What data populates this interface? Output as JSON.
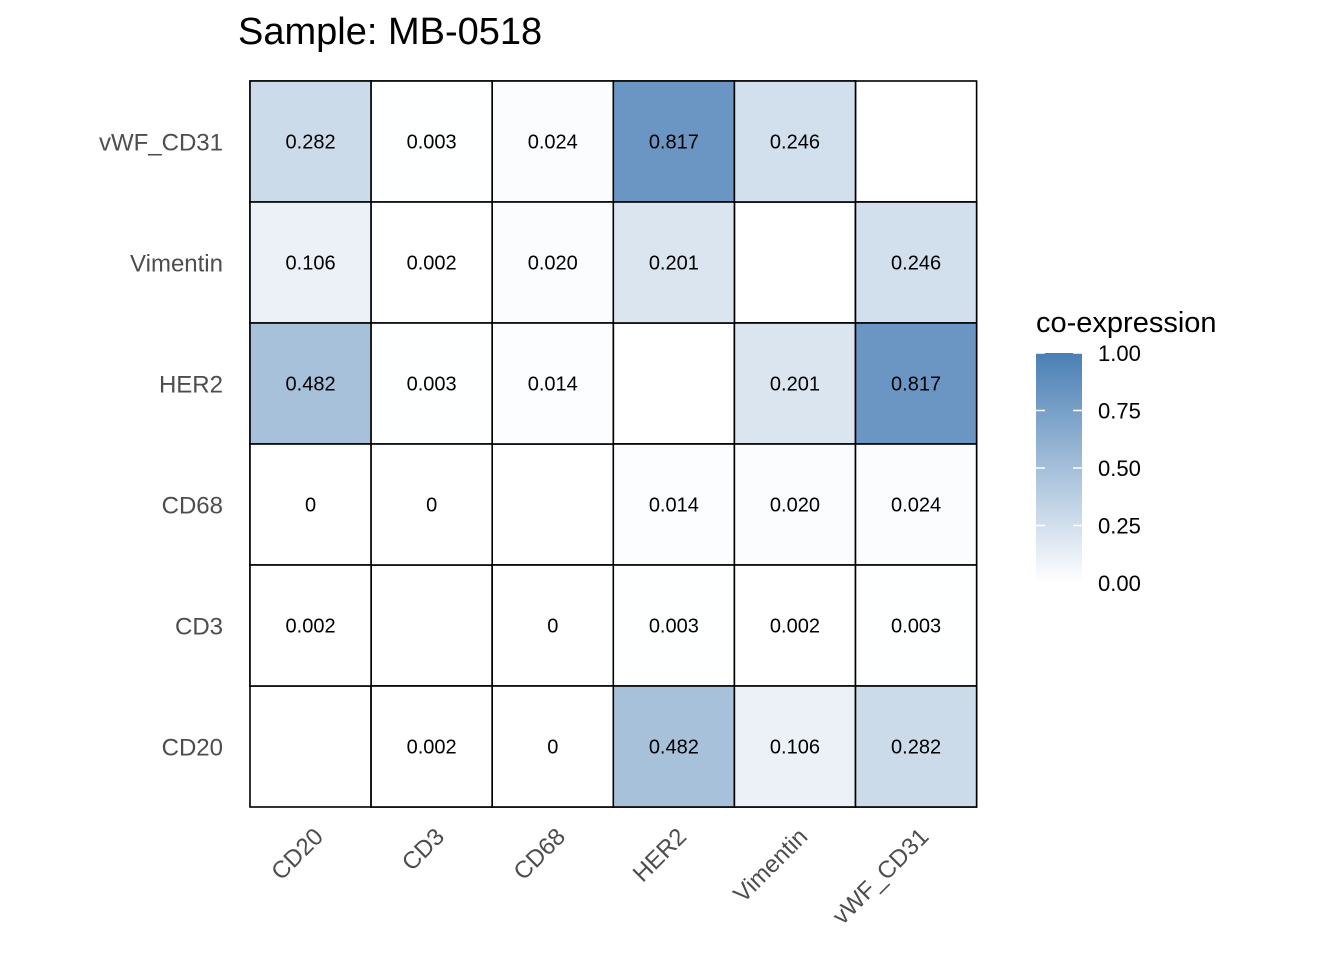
{
  "chart_data": {
    "type": "heatmap",
    "title": "Sample: MB-0518",
    "x_categories": [
      "CD20",
      "CD3",
      "CD68",
      "HER2",
      "Vimentin",
      "vWF_CD31"
    ],
    "y_categories": [
      "CD20",
      "CD3",
      "CD68",
      "HER2",
      "Vimentin",
      "vWF_CD31"
    ],
    "cells": [
      {
        "x": "CD20",
        "y": "vWF_CD31",
        "value": 0.282,
        "label": "0.282"
      },
      {
        "x": "CD3",
        "y": "vWF_CD31",
        "value": 0.003,
        "label": "0.003"
      },
      {
        "x": "CD68",
        "y": "vWF_CD31",
        "value": 0.024,
        "label": "0.024"
      },
      {
        "x": "HER2",
        "y": "vWF_CD31",
        "value": 0.817,
        "label": "0.817"
      },
      {
        "x": "Vimentin",
        "y": "vWF_CD31",
        "value": 0.246,
        "label": "0.246"
      },
      {
        "x": "CD20",
        "y": "Vimentin",
        "value": 0.106,
        "label": "0.106"
      },
      {
        "x": "CD3",
        "y": "Vimentin",
        "value": 0.002,
        "label": "0.002"
      },
      {
        "x": "CD68",
        "y": "Vimentin",
        "value": 0.02,
        "label": "0.020"
      },
      {
        "x": "HER2",
        "y": "Vimentin",
        "value": 0.201,
        "label": "0.201"
      },
      {
        "x": "vWF_CD31",
        "y": "Vimentin",
        "value": 0.246,
        "label": "0.246"
      },
      {
        "x": "CD20",
        "y": "HER2",
        "value": 0.482,
        "label": "0.482"
      },
      {
        "x": "CD3",
        "y": "HER2",
        "value": 0.003,
        "label": "0.003"
      },
      {
        "x": "CD68",
        "y": "HER2",
        "value": 0.014,
        "label": "0.014"
      },
      {
        "x": "Vimentin",
        "y": "HER2",
        "value": 0.201,
        "label": "0.201"
      },
      {
        "x": "vWF_CD31",
        "y": "HER2",
        "value": 0.817,
        "label": "0.817"
      },
      {
        "x": "CD20",
        "y": "CD68",
        "value": 0,
        "label": "0"
      },
      {
        "x": "CD3",
        "y": "CD68",
        "value": 0,
        "label": "0"
      },
      {
        "x": "HER2",
        "y": "CD68",
        "value": 0.014,
        "label": "0.014"
      },
      {
        "x": "Vimentin",
        "y": "CD68",
        "value": 0.02,
        "label": "0.020"
      },
      {
        "x": "vWF_CD31",
        "y": "CD68",
        "value": 0.024,
        "label": "0.024"
      },
      {
        "x": "CD20",
        "y": "CD3",
        "value": 0.002,
        "label": "0.002"
      },
      {
        "x": "CD68",
        "y": "CD3",
        "value": 0,
        "label": "0"
      },
      {
        "x": "HER2",
        "y": "CD3",
        "value": 0.003,
        "label": "0.003"
      },
      {
        "x": "Vimentin",
        "y": "CD3",
        "value": 0.002,
        "label": "0.002"
      },
      {
        "x": "vWF_CD31",
        "y": "CD3",
        "value": 0.003,
        "label": "0.003"
      },
      {
        "x": "CD3",
        "y": "CD20",
        "value": 0.002,
        "label": "0.002"
      },
      {
        "x": "CD68",
        "y": "CD20",
        "value": 0,
        "label": "0"
      },
      {
        "x": "HER2",
        "y": "CD20",
        "value": 0.482,
        "label": "0.482"
      },
      {
        "x": "Vimentin",
        "y": "CD20",
        "value": 0.106,
        "label": "0.106"
      },
      {
        "x": "vWF_CD31",
        "y": "CD20",
        "value": 0.282,
        "label": "0.282"
      }
    ],
    "diagonal": "blank",
    "legend": {
      "title": "co-expression",
      "ticks": [
        {
          "value": 1.0,
          "label": "1.00"
        },
        {
          "value": 0.75,
          "label": "0.75"
        },
        {
          "value": 0.5,
          "label": "0.50"
        },
        {
          "value": 0.25,
          "label": "0.25"
        },
        {
          "value": 0.0,
          "label": "0.00"
        }
      ],
      "range": [
        0,
        1
      ],
      "placement": "right"
    },
    "colors": {
      "low": "#ffffff",
      "high": "#4a7fb5",
      "cell_border": "#000000"
    },
    "xlabel": "",
    "ylabel": "",
    "x_tick_rotation_deg": 45,
    "grid": false
  }
}
